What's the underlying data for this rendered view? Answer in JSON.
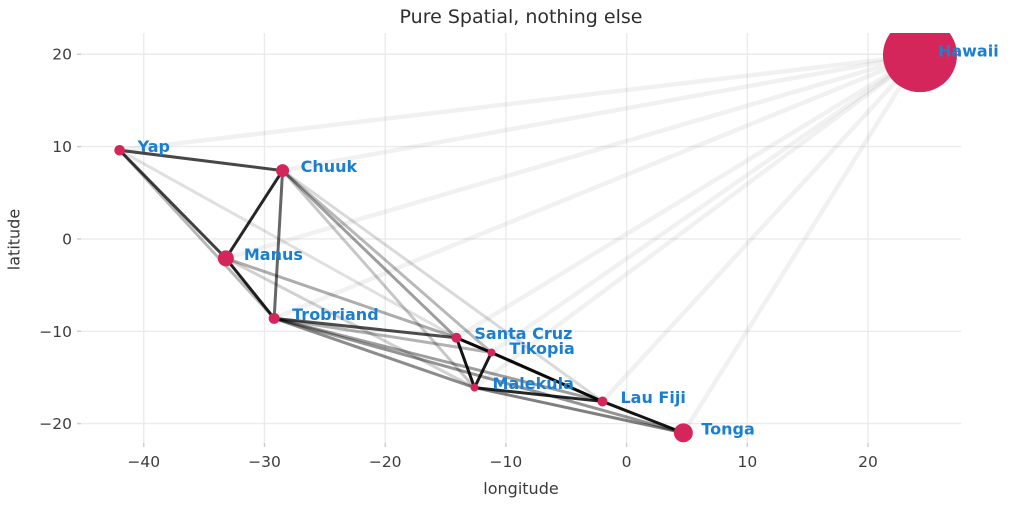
{
  "colors": {
    "background": "#ffffff",
    "grid": "#ebebeb",
    "tick_mark": "#cccccc",
    "tick_text": "#3d3d3d",
    "title_text": "#2e2e2e",
    "node_fill": "#d5265b",
    "node_label": "#1a7fd0",
    "edge": "#000000"
  },
  "chart_data": {
    "type": "scatter",
    "subtype": "network",
    "title": "Pure Spatial, nothing else",
    "xlabel": "longitude",
    "ylabel": "latitude",
    "grid": true,
    "legend": "none",
    "xlim": [
      -45.2,
      27.7
    ],
    "ylim": [
      -22.1,
      22.3
    ],
    "xtick_values": [
      -40,
      -30,
      -20,
      -10,
      0,
      10,
      20
    ],
    "xtick_labels": [
      "−40",
      "−30",
      "−20",
      "−10",
      "0",
      "10",
      "20"
    ],
    "ytick_values": [
      20,
      10,
      0,
      -10,
      -20
    ],
    "ytick_labels": [
      "20",
      "10",
      "0",
      "−10",
      "−20"
    ],
    "nodes": [
      {
        "name": "Hawaii",
        "lon": 24.3,
        "lat": 19.9,
        "r": 37
      },
      {
        "name": "Yap",
        "lon": -42.0,
        "lat": 9.6,
        "r": 5.3
      },
      {
        "name": "Chuuk",
        "lon": -28.5,
        "lat": 7.4,
        "r": 6.5
      },
      {
        "name": "Manus",
        "lon": -33.2,
        "lat": -2.1,
        "r": 8
      },
      {
        "name": "Trobriand",
        "lon": -29.2,
        "lat": -8.6,
        "r": 5.5
      },
      {
        "name": "Santa Cruz",
        "lon": -14.1,
        "lat": -10.7,
        "r": 5
      },
      {
        "name": "Tikopia",
        "lon": -11.2,
        "lat": -12.3,
        "r": 4
      },
      {
        "name": "Malekula",
        "lon": -12.6,
        "lat": -16.1,
        "r": 4
      },
      {
        "name": "Lau Fiji",
        "lon": -2.0,
        "lat": -17.6,
        "r": 5
      },
      {
        "name": "Tonga",
        "lon": 4.7,
        "lat": -21.0,
        "r": 9.5
      }
    ],
    "edges": [
      {
        "a": "Yap",
        "b": "Chuuk",
        "w": 0.72
      },
      {
        "a": "Yap",
        "b": "Manus",
        "w": 0.75
      },
      {
        "a": "Yap",
        "b": "Trobriand",
        "w": 0.28
      },
      {
        "a": "Yap",
        "b": "Santa Cruz",
        "w": 0.12
      },
      {
        "a": "Chuuk",
        "b": "Manus",
        "w": 0.85
      },
      {
        "a": "Chuuk",
        "b": "Trobriand",
        "w": 0.6
      },
      {
        "a": "Chuuk",
        "b": "Santa Cruz",
        "w": 0.38
      },
      {
        "a": "Chuuk",
        "b": "Tikopia",
        "w": 0.28
      },
      {
        "a": "Chuuk",
        "b": "Malekula",
        "w": 0.22
      },
      {
        "a": "Chuuk",
        "b": "Lau Fiji",
        "w": 0.15
      },
      {
        "a": "Manus",
        "b": "Trobriand",
        "w": 0.88
      },
      {
        "a": "Manus",
        "b": "Santa Cruz",
        "w": 0.32
      },
      {
        "a": "Manus",
        "b": "Malekula",
        "w": 0.18
      },
      {
        "a": "Trobriand",
        "b": "Santa Cruz",
        "w": 0.7
      },
      {
        "a": "Trobriand",
        "b": "Tikopia",
        "w": 0.3
      },
      {
        "a": "Trobriand",
        "b": "Malekula",
        "w": 0.45
      },
      {
        "a": "Trobriand",
        "b": "Lau Fiji",
        "w": 0.38
      },
      {
        "a": "Trobriand",
        "b": "Tonga",
        "w": 0.42
      },
      {
        "a": "Santa Cruz",
        "b": "Tikopia",
        "w": 0.95
      },
      {
        "a": "Santa Cruz",
        "b": "Malekula",
        "w": 0.92
      },
      {
        "a": "Santa Cruz",
        "b": "Lau Fiji",
        "w": 0.28
      },
      {
        "a": "Tikopia",
        "b": "Malekula",
        "w": 0.9
      },
      {
        "a": "Tikopia",
        "b": "Lau Fiji",
        "w": 0.95
      },
      {
        "a": "Malekula",
        "b": "Lau Fiji",
        "w": 0.85
      },
      {
        "a": "Malekula",
        "b": "Tonga",
        "w": 0.5
      },
      {
        "a": "Lau Fiji",
        "b": "Tonga",
        "w": 0.92
      },
      {
        "a": "Hawaii",
        "b": "Yap",
        "w": 0.055,
        "lw": 4.5
      },
      {
        "a": "Hawaii",
        "b": "Chuuk",
        "w": 0.055,
        "lw": 4.5
      },
      {
        "a": "Hawaii",
        "b": "Manus",
        "w": 0.055,
        "lw": 4.5
      },
      {
        "a": "Hawaii",
        "b": "Trobriand",
        "w": 0.055,
        "lw": 4.5
      },
      {
        "a": "Hawaii",
        "b": "Santa Cruz",
        "w": 0.055,
        "lw": 4.5
      },
      {
        "a": "Hawaii",
        "b": "Tikopia",
        "w": 0.055,
        "lw": 4.5
      },
      {
        "a": "Hawaii",
        "b": "Malekula",
        "w": 0.055,
        "lw": 4.5
      },
      {
        "a": "Hawaii",
        "b": "Lau Fiji",
        "w": 0.055,
        "lw": 4.5
      },
      {
        "a": "Hawaii",
        "b": "Tonga",
        "w": 0.055,
        "lw": 4.5
      }
    ]
  }
}
